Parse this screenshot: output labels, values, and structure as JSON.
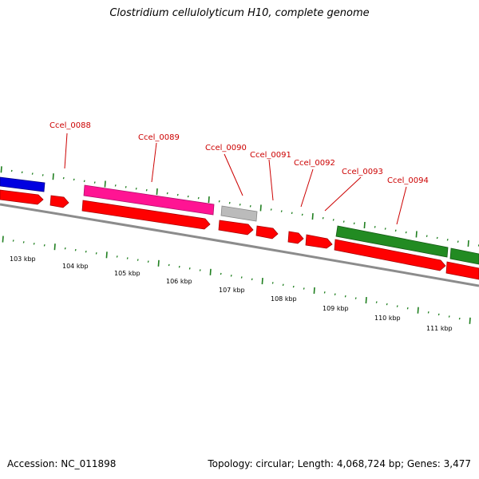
{
  "title": "Clostridium cellulolyticum H10, complete genome",
  "footer": {
    "accession": "Accession: NC_011898",
    "topology": "Topology: circular; Length: 4,068,724 bp; Genes: 3,477"
  },
  "colors": {
    "cds": "#ff0000",
    "gene_label": "#cc0000",
    "tick": "#1f7f1f",
    "backbone": "#8c8c8c",
    "blue": "#0000e0",
    "magenta": "#ff1493",
    "grey": "#bbbbbb",
    "green": "#228b22"
  },
  "gene_labels": [
    "Ccel_0088",
    "Ccel_0089",
    "Ccel_0090",
    "Ccel_0091",
    "Ccel_0092",
    "Ccel_0093",
    "Ccel_0094"
  ],
  "kbp_labels": [
    "103 kbp",
    "104 kbp",
    "105 kbp",
    "106 kbp",
    "107 kbp",
    "108 kbp",
    "109 kbp",
    "110 kbp",
    "111 kbp"
  ]
}
